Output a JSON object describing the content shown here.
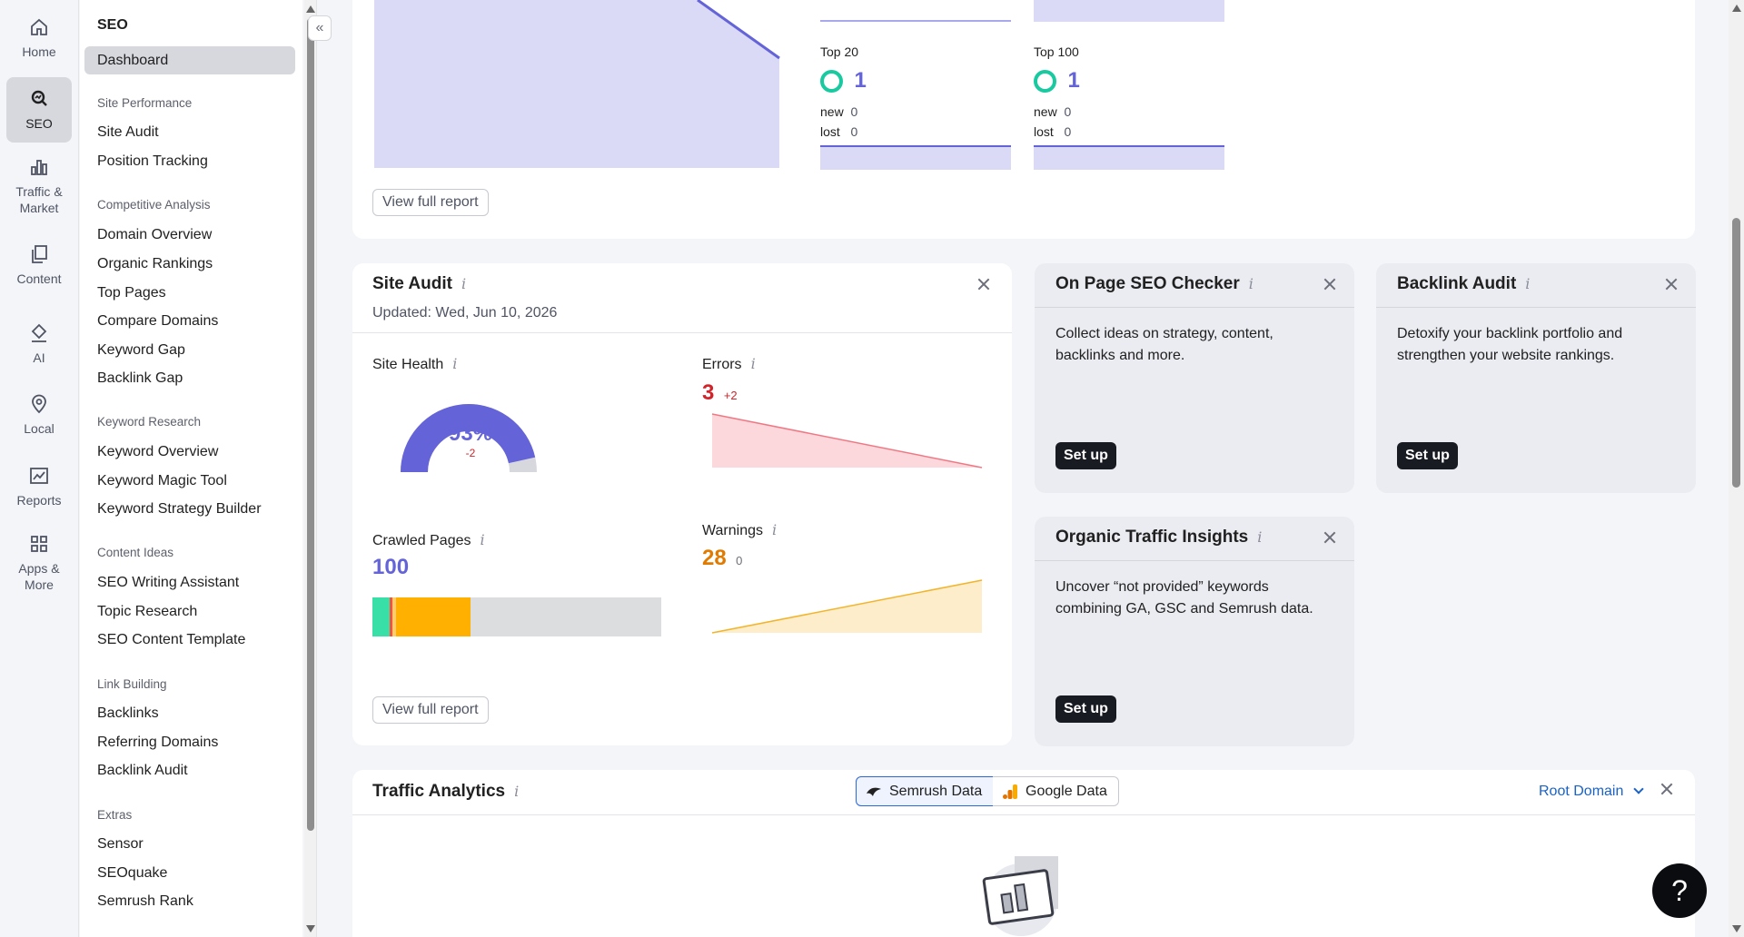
{
  "rail": {
    "items": [
      {
        "label": "Home",
        "icon": "home-icon"
      },
      {
        "label": "SEO",
        "icon": "seo-icon"
      },
      {
        "label": "Traffic & Market",
        "icon": "chart-icon"
      },
      {
        "label": "Content",
        "icon": "content-icon"
      },
      {
        "label": "AI",
        "icon": "ai-icon"
      },
      {
        "label": "Local",
        "icon": "pin-icon"
      },
      {
        "label": "Reports",
        "icon": "reports-icon"
      },
      {
        "label": "Apps & More",
        "icon": "apps-icon"
      }
    ]
  },
  "subnav": {
    "title": "SEO",
    "dashboard": "Dashboard",
    "sections": [
      {
        "title": "Site Performance",
        "items": [
          "Site Audit",
          "Position Tracking"
        ]
      },
      {
        "title": "Competitive Analysis",
        "items": [
          "Domain Overview",
          "Organic Rankings",
          "Top Pages",
          "Compare Domains",
          "Keyword Gap",
          "Backlink Gap"
        ]
      },
      {
        "title": "Keyword Research",
        "items": [
          "Keyword Overview",
          "Keyword Magic Tool",
          "Keyword Strategy Builder"
        ]
      },
      {
        "title": "Content Ideas",
        "items": [
          "SEO Writing Assistant",
          "Topic Research",
          "SEO Content Template"
        ]
      },
      {
        "title": "Link Building",
        "items": [
          "Backlinks",
          "Referring Domains",
          "Backlink Audit"
        ]
      },
      {
        "title": "Extras",
        "items": [
          "Sensor",
          "SEOquake",
          "Semrush Rank"
        ]
      }
    ]
  },
  "top_card": {
    "view_full_report": "View full report",
    "top20": {
      "label": "Top 20",
      "value": "1",
      "new_label": "new",
      "new_value": "0",
      "lost_label": "lost",
      "lost_value": "0"
    },
    "top100": {
      "label": "Top 100",
      "value": "1",
      "new_label": "new",
      "new_value": "0",
      "lost_label": "lost",
      "lost_value": "0"
    }
  },
  "site_audit": {
    "title": "Site Audit",
    "updated": "Updated: Wed, Jun 10, 2026",
    "site_health_label": "Site Health",
    "site_health_value": "93%",
    "site_health_fraction": 0.93,
    "site_health_delta": "-2",
    "errors_label": "Errors",
    "errors_value": "3",
    "errors_delta": "+2",
    "crawled_label": "Crawled Pages",
    "crawled_value": "100",
    "warnings_label": "Warnings",
    "warnings_value": "28",
    "warnings_delta": "0",
    "view_full_report": "View full report",
    "colors": {
      "health": "#6463d8",
      "errors": "#d1232a",
      "warnings": "#e07a00",
      "crawled": "#6463d8"
    }
  },
  "onpage": {
    "title": "On Page SEO Checker",
    "desc": "Collect ideas on strategy, content, backlinks and more.",
    "button": "Set up"
  },
  "backlink_audit": {
    "title": "Backlink Audit",
    "desc": "Detoxify your backlink portfolio and strengthen your website rankings.",
    "button": "Set up"
  },
  "organic_insights": {
    "title": "Organic Traffic Insights",
    "desc": "Uncover “not provided” keywords combining GA, GSC and Semrush data.",
    "button": "Set up"
  },
  "traffic_analytics": {
    "title": "Traffic Analytics",
    "tab_semrush": "Semrush Data",
    "tab_google": "Google Data",
    "root_domain": "Root Domain"
  },
  "help": "?"
}
